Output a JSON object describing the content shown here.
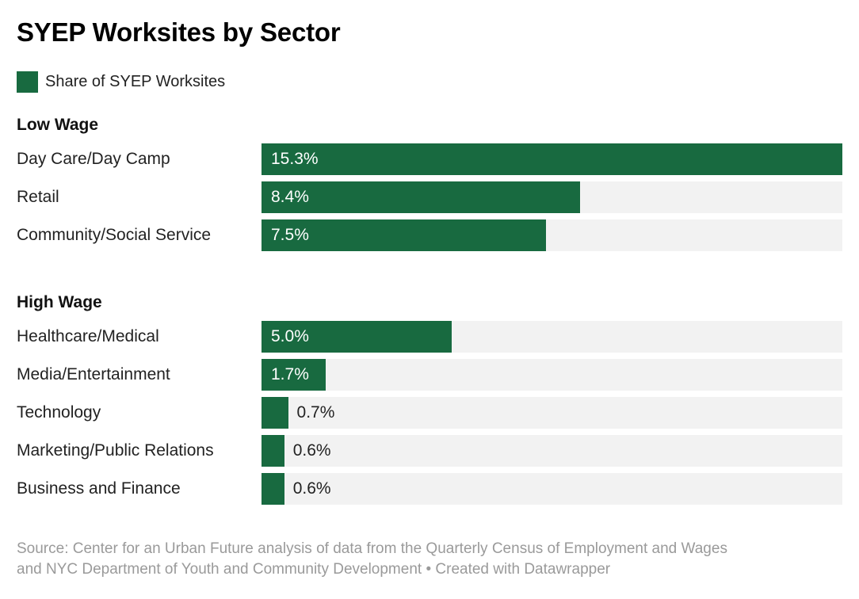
{
  "title": "SYEP Worksites by Sector",
  "legend": {
    "label": "Share of SYEP Worksites"
  },
  "colors": {
    "bar": "#186a40",
    "track": "#f2f2f2",
    "title_text": "#000000",
    "label_text": "#222222",
    "footer_text": "#9a9a9a",
    "background": "#ffffff"
  },
  "chart_data": {
    "type": "bar",
    "orientation": "horizontal",
    "title": "SYEP Worksites by Sector",
    "series_name": "Share of SYEP Worksites",
    "unit": "%",
    "max_value": 15.3,
    "axis_visible": false,
    "grid": false,
    "legend_position": "top-left",
    "groups": [
      {
        "label": "Low Wage",
        "rows": [
          {
            "category": "Day Care/Day Camp",
            "value": 15.3,
            "value_label": "15.3%"
          },
          {
            "category": "Retail",
            "value": 8.4,
            "value_label": "8.4%"
          },
          {
            "category": "Community/Social Service",
            "value": 7.5,
            "value_label": "7.5%"
          }
        ]
      },
      {
        "label": "High Wage",
        "rows": [
          {
            "category": "Healthcare/Medical",
            "value": 5.0,
            "value_label": "5.0%"
          },
          {
            "category": "Media/Entertainment",
            "value": 1.7,
            "value_label": "1.7%"
          },
          {
            "category": "Technology",
            "value": 0.7,
            "value_label": "0.7%"
          },
          {
            "category": "Marketing/Public Relations",
            "value": 0.6,
            "value_label": "0.6%"
          },
          {
            "category": "Business and Finance",
            "value": 0.6,
            "value_label": "0.6%"
          }
        ]
      }
    ]
  },
  "footer": {
    "line1": "Source: Center for an Urban Future analysis of data from the Quarterly Census of Employment and Wages",
    "line2_prefix": "and NYC Department of Youth and Community Development • ",
    "created_label": "Created with Datawrapper"
  }
}
